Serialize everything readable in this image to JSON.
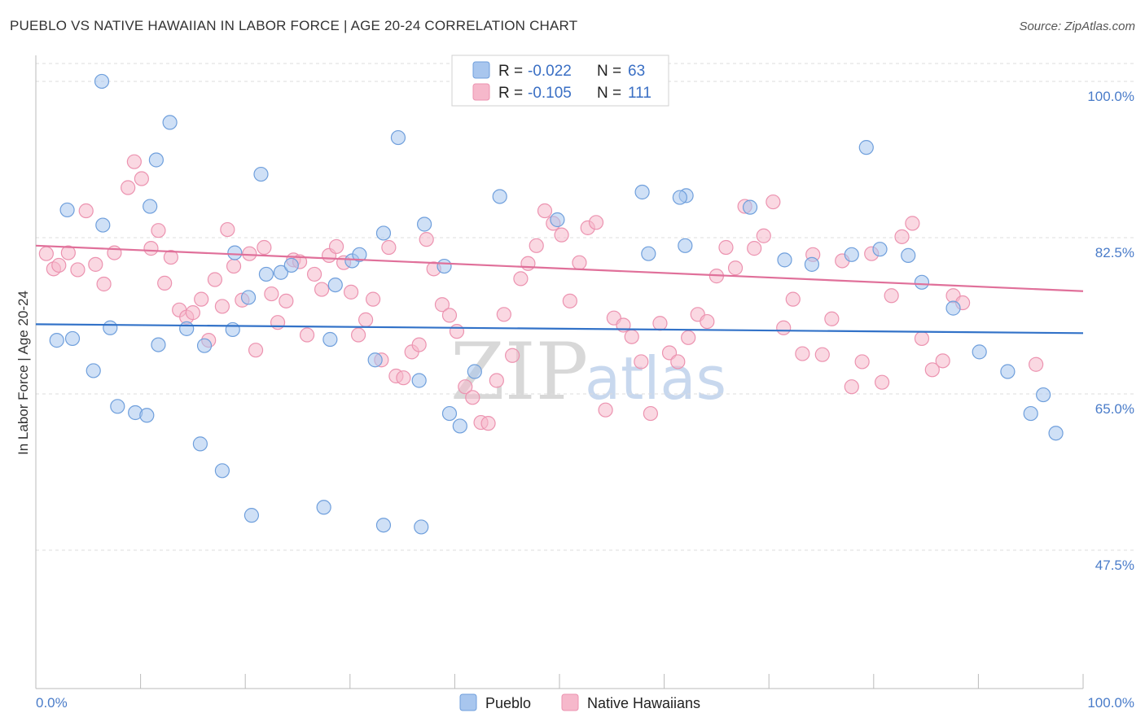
{
  "title": "PUEBLO VS NATIVE HAWAIIAN IN LABOR FORCE | AGE 20-24 CORRELATION CHART",
  "source": "Source: ZipAtlas.com",
  "watermark": {
    "zip": "ZIP",
    "atlas": "atlas"
  },
  "chart_data": {
    "type": "scatter",
    "xlabel": "",
    "ylabel": "In Labor Force | Age 20-24",
    "xlim": [
      0,
      100
    ],
    "ylim": [
      32,
      102
    ],
    "x_tick_labels": [
      "0.0%",
      "100.0%"
    ],
    "y_ticks": [
      47.5,
      65.0,
      82.5,
      100.0
    ],
    "y_tick_labels": [
      "47.5%",
      "65.0%",
      "82.5%",
      "100.0%"
    ],
    "legend": {
      "entries": [
        {
          "name": "Pueblo",
          "r_label": "R =",
          "r": "-0.022",
          "n_label": "N =",
          "n": "63"
        },
        {
          "name": "Native Hawaiians",
          "r_label": "R =",
          "r": "-0.105",
          "n_label": "N =",
          "n": "111"
        }
      ]
    },
    "colors": {
      "pueblo_fill": "#a8c6ee",
      "pueblo_stroke": "#6f9fdc",
      "pueblo_line": "#3272c8",
      "hawaiian_fill": "#f6b8cb",
      "hawaiian_stroke": "#ec93b0",
      "hawaiian_line": "#e0709a",
      "grid": "#dddddd",
      "tick_text": "#4a7cc9"
    },
    "series": [
      {
        "name": "Pueblo",
        "trend": [
          [
            0,
            72.8
          ],
          [
            100,
            71.8
          ]
        ],
        "points": [
          [
            6.3,
            100
          ],
          [
            12.8,
            95.4
          ],
          [
            11.5,
            91.2
          ],
          [
            3.0,
            85.6
          ],
          [
            10.9,
            86.0
          ],
          [
            6.4,
            83.9
          ],
          [
            34.6,
            93.7
          ],
          [
            21.5,
            89.6
          ],
          [
            23.4,
            78.6
          ],
          [
            62.1,
            87.2
          ],
          [
            11.7,
            70.5
          ],
          [
            7.1,
            72.4
          ],
          [
            14.4,
            72.3
          ],
          [
            18.8,
            72.2
          ],
          [
            16.1,
            70.4
          ],
          [
            19.0,
            80.8
          ],
          [
            20.3,
            75.8
          ],
          [
            22.0,
            78.4
          ],
          [
            24.4,
            79.4
          ],
          [
            30.2,
            79.9
          ],
          [
            39.0,
            79.3
          ],
          [
            41.9,
            67.5
          ],
          [
            2.0,
            71.0
          ],
          [
            3.5,
            71.2
          ],
          [
            5.5,
            67.6
          ],
          [
            7.8,
            63.6
          ],
          [
            9.5,
            62.9
          ],
          [
            10.6,
            62.6
          ],
          [
            15.7,
            59.4
          ],
          [
            17.8,
            56.4
          ],
          [
            20.6,
            51.4
          ],
          [
            27.5,
            52.3
          ],
          [
            33.2,
            50.3
          ],
          [
            36.8,
            50.1
          ],
          [
            39.5,
            62.8
          ],
          [
            40.5,
            61.4
          ],
          [
            36.6,
            66.5
          ],
          [
            32.4,
            68.8
          ],
          [
            28.1,
            71.1
          ],
          [
            28.6,
            77.2
          ],
          [
            30.9,
            80.6
          ],
          [
            33.2,
            83.0
          ],
          [
            37.1,
            84.0
          ],
          [
            44.3,
            87.1
          ],
          [
            49.8,
            84.5
          ],
          [
            57.9,
            87.6
          ],
          [
            61.5,
            87.0
          ],
          [
            58.5,
            80.7
          ],
          [
            62.0,
            81.6
          ],
          [
            68.2,
            85.9
          ],
          [
            71.5,
            80.0
          ],
          [
            74.1,
            79.5
          ],
          [
            79.3,
            92.6
          ],
          [
            77.9,
            80.6
          ],
          [
            80.6,
            81.2
          ],
          [
            83.3,
            80.5
          ],
          [
            84.6,
            77.5
          ],
          [
            87.6,
            74.6
          ],
          [
            90.1,
            69.7
          ],
          [
            92.8,
            67.5
          ],
          [
            95.0,
            62.8
          ],
          [
            96.2,
            64.9
          ],
          [
            97.4,
            60.6
          ]
        ]
      },
      {
        "name": "Native Hawaiians",
        "trend": [
          [
            0,
            81.6
          ],
          [
            100,
            76.5
          ]
        ],
        "points": [
          [
            1.0,
            80.7
          ],
          [
            1.7,
            79.0
          ],
          [
            2.2,
            79.4
          ],
          [
            3.1,
            80.8
          ],
          [
            4.0,
            78.9
          ],
          [
            4.8,
            85.5
          ],
          [
            5.7,
            79.5
          ],
          [
            6.5,
            77.3
          ],
          [
            7.5,
            80.8
          ],
          [
            8.8,
            88.1
          ],
          [
            9.4,
            91.0
          ],
          [
            10.1,
            89.1
          ],
          [
            11.0,
            81.3
          ],
          [
            11.7,
            83.3
          ],
          [
            12.3,
            77.4
          ],
          [
            12.9,
            80.3
          ],
          [
            13.7,
            74.4
          ],
          [
            14.4,
            73.6
          ],
          [
            15.0,
            74.1
          ],
          [
            15.8,
            75.6
          ],
          [
            16.5,
            71.0
          ],
          [
            17.1,
            77.8
          ],
          [
            17.8,
            74.8
          ],
          [
            18.3,
            83.4
          ],
          [
            18.9,
            79.3
          ],
          [
            19.7,
            75.5
          ],
          [
            20.4,
            80.7
          ],
          [
            21.0,
            69.9
          ],
          [
            21.8,
            81.4
          ],
          [
            22.5,
            76.2
          ],
          [
            23.1,
            73.0
          ],
          [
            23.9,
            75.4
          ],
          [
            24.6,
            80.0
          ],
          [
            25.2,
            79.8
          ],
          [
            25.9,
            71.6
          ],
          [
            26.6,
            78.4
          ],
          [
            27.3,
            76.7
          ],
          [
            28.0,
            80.5
          ],
          [
            28.7,
            81.5
          ],
          [
            29.4,
            79.7
          ],
          [
            30.1,
            76.4
          ],
          [
            30.8,
            71.6
          ],
          [
            31.5,
            73.3
          ],
          [
            32.2,
            75.6
          ],
          [
            33.0,
            68.8
          ],
          [
            33.7,
            81.4
          ],
          [
            34.4,
            67.0
          ],
          [
            35.1,
            66.8
          ],
          [
            35.9,
            69.7
          ],
          [
            36.6,
            70.5
          ],
          [
            37.3,
            82.3
          ],
          [
            38.0,
            79.0
          ],
          [
            38.8,
            75.0
          ],
          [
            39.5,
            73.8
          ],
          [
            40.2,
            72.0
          ],
          [
            41.0,
            65.8
          ],
          [
            41.7,
            64.6
          ],
          [
            42.5,
            61.8
          ],
          [
            43.2,
            61.7
          ],
          [
            44.0,
            66.5
          ],
          [
            44.7,
            73.9
          ],
          [
            45.5,
            69.3
          ],
          [
            46.3,
            77.9
          ],
          [
            47.0,
            79.6
          ],
          [
            47.8,
            81.6
          ],
          [
            48.6,
            85.5
          ],
          [
            49.4,
            84.1
          ],
          [
            50.2,
            82.8
          ],
          [
            51.0,
            75.4
          ],
          [
            51.9,
            79.7
          ],
          [
            52.7,
            83.6
          ],
          [
            53.5,
            84.2
          ],
          [
            54.4,
            63.2
          ],
          [
            55.2,
            73.5
          ],
          [
            56.1,
            72.7
          ],
          [
            56.9,
            71.4
          ],
          [
            57.8,
            68.6
          ],
          [
            58.7,
            62.8
          ],
          [
            59.6,
            72.9
          ],
          [
            60.5,
            69.6
          ],
          [
            61.3,
            68.6
          ],
          [
            62.3,
            71.3
          ],
          [
            63.2,
            73.9
          ],
          [
            64.1,
            73.1
          ],
          [
            65.0,
            78.2
          ],
          [
            65.9,
            81.4
          ],
          [
            66.8,
            79.1
          ],
          [
            67.7,
            86.0
          ],
          [
            68.6,
            81.3
          ],
          [
            69.5,
            82.7
          ],
          [
            70.4,
            86.5
          ],
          [
            71.4,
            72.4
          ],
          [
            72.3,
            75.6
          ],
          [
            73.2,
            69.5
          ],
          [
            74.2,
            80.6
          ],
          [
            75.1,
            69.4
          ],
          [
            76.0,
            73.4
          ],
          [
            77.0,
            79.9
          ],
          [
            77.9,
            65.8
          ],
          [
            78.9,
            68.6
          ],
          [
            79.8,
            80.7
          ],
          [
            80.8,
            66.3
          ],
          [
            81.7,
            76.0
          ],
          [
            82.7,
            82.6
          ],
          [
            83.7,
            84.1
          ],
          [
            84.6,
            71.2
          ],
          [
            85.6,
            67.7
          ],
          [
            86.6,
            68.7
          ],
          [
            87.6,
            76.0
          ],
          [
            88.5,
            75.2
          ],
          [
            95.5,
            68.3
          ]
        ]
      }
    ]
  }
}
